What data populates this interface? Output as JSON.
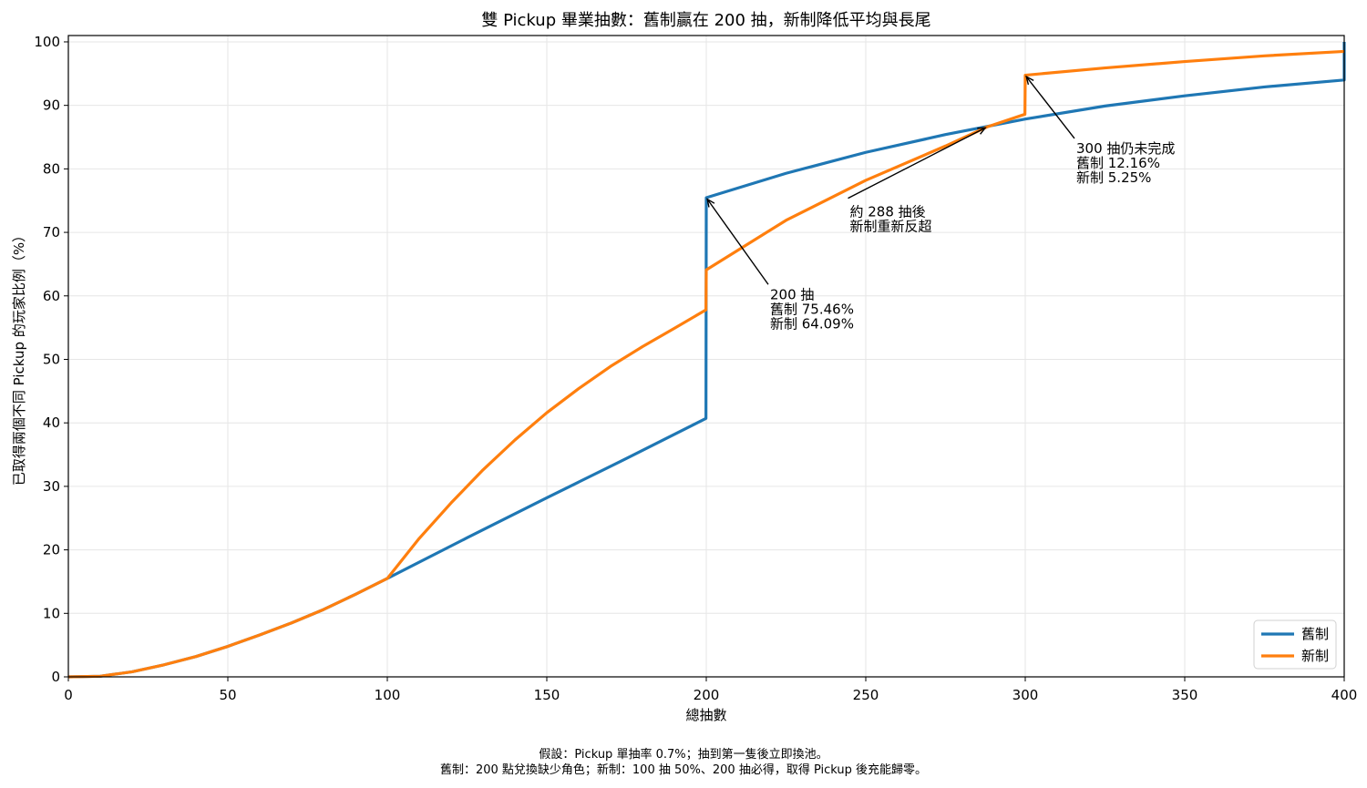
{
  "chart_data": {
    "type": "line",
    "title": "雙 Pickup 畢業抽數：舊制贏在 200 抽，新制降低平均與長尾",
    "xlabel": "總抽數",
    "ylabel": "已取得兩個不同 Pickup 的玩家比例（%）",
    "xlim": [
      0,
      400
    ],
    "ylim": [
      0,
      101
    ],
    "xticks": [
      0,
      50,
      100,
      150,
      200,
      250,
      300,
      350,
      400
    ],
    "yticks": [
      0,
      10,
      20,
      30,
      40,
      50,
      60,
      70,
      80,
      90,
      100
    ],
    "grid": true,
    "legend_position": "bottom-right",
    "series": [
      {
        "name": "舊制",
        "color": "#1f77b4",
        "points": [
          [
            0,
            0
          ],
          [
            10,
            0.1
          ],
          [
            20,
            0.8
          ],
          [
            30,
            1.9
          ],
          [
            40,
            3.2
          ],
          [
            50,
            4.8
          ],
          [
            60,
            6.6
          ],
          [
            70,
            8.5
          ],
          [
            80,
            10.6
          ],
          [
            90,
            13.0
          ],
          [
            100,
            15.5
          ],
          [
            125,
            21.9
          ],
          [
            150,
            28.2
          ],
          [
            175,
            34.4
          ],
          [
            199.9,
            40.7
          ],
          [
            200,
            75.46
          ],
          [
            225,
            79.3
          ],
          [
            250,
            82.6
          ],
          [
            275,
            85.4
          ],
          [
            300,
            87.84
          ],
          [
            325,
            89.9
          ],
          [
            350,
            91.5
          ],
          [
            375,
            92.9
          ],
          [
            400,
            94.0
          ],
          [
            400,
            100
          ]
        ]
      },
      {
        "name": "新制",
        "color": "#ff7f0e",
        "points": [
          [
            0,
            0
          ],
          [
            10,
            0.1
          ],
          [
            20,
            0.8
          ],
          [
            30,
            1.9
          ],
          [
            40,
            3.2
          ],
          [
            50,
            4.8
          ],
          [
            60,
            6.6
          ],
          [
            70,
            8.5
          ],
          [
            80,
            10.6
          ],
          [
            90,
            13.0
          ],
          [
            100,
            15.5
          ],
          [
            110,
            21.8
          ],
          [
            120,
            27.4
          ],
          [
            130,
            32.6
          ],
          [
            140,
            37.3
          ],
          [
            150,
            41.6
          ],
          [
            160,
            45.4
          ],
          [
            170,
            48.9
          ],
          [
            180,
            52.0
          ],
          [
            190,
            54.9
          ],
          [
            199.9,
            57.8
          ],
          [
            200,
            64.09
          ],
          [
            225,
            71.9
          ],
          [
            250,
            78.2
          ],
          [
            275,
            83.6
          ],
          [
            288,
            86.6
          ],
          [
            299.9,
            88.6
          ],
          [
            300,
            94.75
          ],
          [
            325,
            95.9
          ],
          [
            350,
            96.9
          ],
          [
            375,
            97.8
          ],
          [
            400,
            98.5
          ]
        ]
      }
    ],
    "annotations": [
      {
        "lines": [
          "200 抽",
          "舊制 75.46%",
          "新制 64.09%"
        ],
        "text_at": [
          220,
          59.5
        ],
        "arrow_to": [
          200,
          75.46
        ]
      },
      {
        "lines": [
          "約 288 抽後",
          "新制重新反超"
        ],
        "text_at": [
          245,
          72.5
        ],
        "arrow_to": [
          288,
          86.6
        ]
      },
      {
        "lines": [
          "300 抽仍未完成",
          "舊制 12.16%",
          "新制 5.25%"
        ],
        "text_at": [
          316,
          82.5
        ],
        "arrow_to": [
          300,
          94.75
        ]
      }
    ]
  },
  "footnote": {
    "line1": "假設：Pickup 單抽率 0.7%；抽到第一隻後立即換池。",
    "line2": "舊制：200 點兌換缺少角色；新制：100 抽 50%、200 抽必得，取得 Pickup 後充能歸零。"
  }
}
